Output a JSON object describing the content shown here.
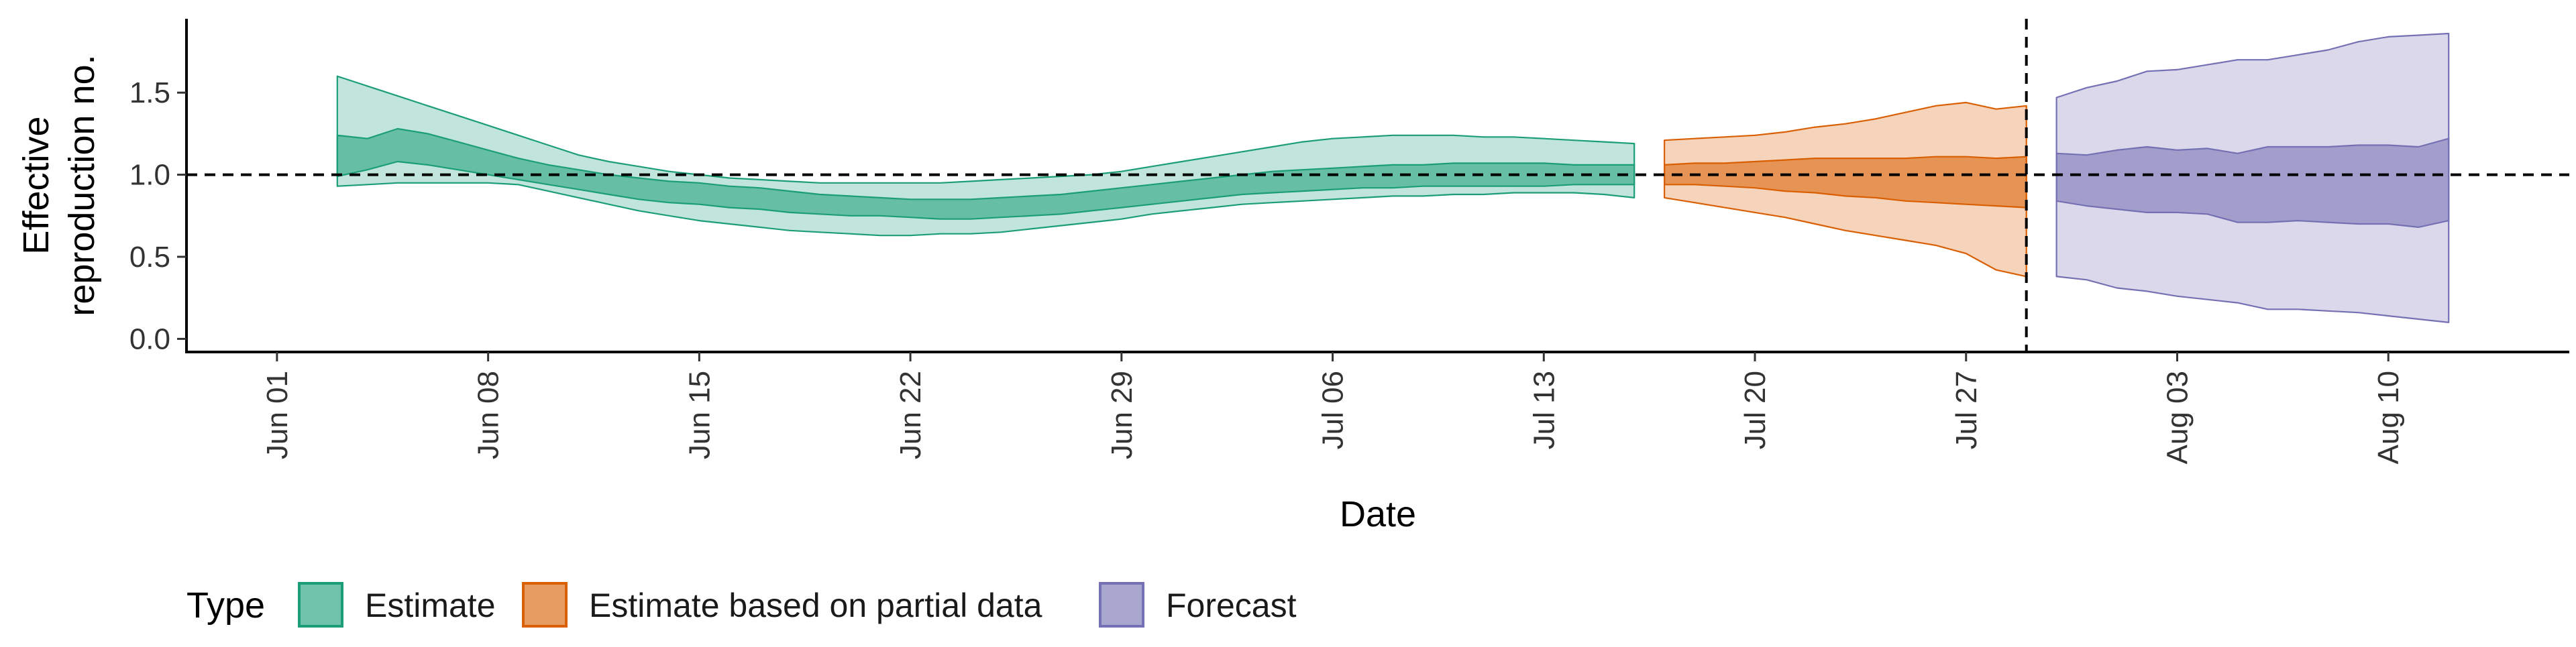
{
  "colors": {
    "estimate": "#1B9E77",
    "partial": "#D95F02",
    "forecast": "#7570B3",
    "axis": "#000000"
  },
  "chart_data": {
    "type": "area",
    "xlabel": "Date",
    "ylabel_lines": [
      "Effective",
      "reproduction no."
    ],
    "ylim": [
      -0.08,
      1.95
    ],
    "xlim": [
      "2020-05-29",
      "2020-08-16"
    ],
    "y_ticks": [
      0.0,
      0.5,
      1.0,
      1.5
    ],
    "y_tick_labels": [
      "0.0",
      "0.5",
      "1.0",
      "1.5"
    ],
    "x_ticks": [
      "2020-06-01",
      "2020-06-08",
      "2020-06-15",
      "2020-06-22",
      "2020-06-29",
      "2020-07-06",
      "2020-07-13",
      "2020-07-20",
      "2020-07-27",
      "2020-08-03",
      "2020-08-10"
    ],
    "x_tick_labels": [
      "Jun 01",
      "Jun 08",
      "Jun 15",
      "Jun 22",
      "Jun 29",
      "Jul 06",
      "Jul 13",
      "Jul 20",
      "Jul 27",
      "Aug 03",
      "Aug 10"
    ],
    "reference_line_y": 1.0,
    "forecast_start_line_x": "2020-07-29",
    "legend": {
      "title": "Type",
      "position": "bottom",
      "labels": [
        "Estimate",
        "Estimate based on partial data",
        "Forecast"
      ]
    },
    "series": [
      {
        "name": "Estimate",
        "color_key": "estimate",
        "x": [
          "2020-06-03",
          "2020-06-04",
          "2020-06-05",
          "2020-06-06",
          "2020-06-07",
          "2020-06-08",
          "2020-06-09",
          "2020-06-10",
          "2020-06-11",
          "2020-06-12",
          "2020-06-13",
          "2020-06-14",
          "2020-06-15",
          "2020-06-16",
          "2020-06-17",
          "2020-06-18",
          "2020-06-19",
          "2020-06-20",
          "2020-06-21",
          "2020-06-22",
          "2020-06-23",
          "2020-06-24",
          "2020-06-25",
          "2020-06-26",
          "2020-06-27",
          "2020-06-28",
          "2020-06-29",
          "2020-06-30",
          "2020-07-01",
          "2020-07-02",
          "2020-07-03",
          "2020-07-04",
          "2020-07-05",
          "2020-07-06",
          "2020-07-07",
          "2020-07-08",
          "2020-07-09",
          "2020-07-10",
          "2020-07-11",
          "2020-07-12",
          "2020-07-13",
          "2020-07-14",
          "2020-07-15",
          "2020-07-16"
        ],
        "lower_90": [
          0.93,
          0.94,
          0.95,
          0.95,
          0.95,
          0.95,
          0.94,
          0.9,
          0.86,
          0.82,
          0.78,
          0.75,
          0.72,
          0.7,
          0.68,
          0.66,
          0.65,
          0.64,
          0.63,
          0.63,
          0.64,
          0.64,
          0.65,
          0.67,
          0.69,
          0.71,
          0.73,
          0.76,
          0.78,
          0.8,
          0.82,
          0.83,
          0.84,
          0.85,
          0.86,
          0.87,
          0.87,
          0.88,
          0.88,
          0.89,
          0.89,
          0.89,
          0.88,
          0.86
        ],
        "upper_90": [
          1.6,
          1.54,
          1.48,
          1.42,
          1.36,
          1.3,
          1.24,
          1.18,
          1.12,
          1.08,
          1.05,
          1.02,
          1.0,
          0.98,
          0.97,
          0.96,
          0.95,
          0.95,
          0.95,
          0.95,
          0.95,
          0.96,
          0.97,
          0.98,
          0.99,
          1.0,
          1.02,
          1.05,
          1.08,
          1.11,
          1.14,
          1.17,
          1.2,
          1.22,
          1.23,
          1.24,
          1.24,
          1.24,
          1.23,
          1.23,
          1.22,
          1.21,
          1.2,
          1.19
        ],
        "lower_50": [
          0.99,
          1.03,
          1.08,
          1.06,
          1.03,
          1.0,
          0.97,
          0.94,
          0.91,
          0.88,
          0.85,
          0.83,
          0.82,
          0.8,
          0.79,
          0.77,
          0.76,
          0.75,
          0.75,
          0.74,
          0.73,
          0.73,
          0.74,
          0.75,
          0.76,
          0.78,
          0.8,
          0.82,
          0.84,
          0.86,
          0.88,
          0.89,
          0.9,
          0.91,
          0.92,
          0.92,
          0.93,
          0.93,
          0.93,
          0.93,
          0.93,
          0.94,
          0.94,
          0.94
        ],
        "upper_50": [
          1.24,
          1.22,
          1.28,
          1.25,
          1.2,
          1.15,
          1.1,
          1.06,
          1.03,
          1.0,
          0.98,
          0.96,
          0.95,
          0.93,
          0.92,
          0.9,
          0.88,
          0.87,
          0.86,
          0.85,
          0.85,
          0.85,
          0.86,
          0.87,
          0.88,
          0.9,
          0.92,
          0.94,
          0.96,
          0.98,
          1.0,
          1.02,
          1.03,
          1.04,
          1.05,
          1.06,
          1.06,
          1.07,
          1.07,
          1.07,
          1.07,
          1.06,
          1.06,
          1.06
        ]
      },
      {
        "name": "Estimate based on partial data",
        "color_key": "partial",
        "x": [
          "2020-07-17",
          "2020-07-18",
          "2020-07-19",
          "2020-07-20",
          "2020-07-21",
          "2020-07-22",
          "2020-07-23",
          "2020-07-24",
          "2020-07-25",
          "2020-07-26",
          "2020-07-27",
          "2020-07-28",
          "2020-07-29"
        ],
        "lower_90": [
          0.86,
          0.83,
          0.8,
          0.77,
          0.74,
          0.7,
          0.66,
          0.63,
          0.6,
          0.57,
          0.52,
          0.42,
          0.38
        ],
        "upper_90": [
          1.21,
          1.22,
          1.23,
          1.24,
          1.26,
          1.29,
          1.31,
          1.34,
          1.38,
          1.42,
          1.44,
          1.4,
          1.42
        ],
        "lower_50": [
          0.94,
          0.94,
          0.93,
          0.92,
          0.9,
          0.89,
          0.87,
          0.86,
          0.84,
          0.83,
          0.82,
          0.81,
          0.8
        ],
        "upper_50": [
          1.06,
          1.07,
          1.07,
          1.08,
          1.09,
          1.1,
          1.1,
          1.1,
          1.1,
          1.11,
          1.11,
          1.1,
          1.11
        ]
      },
      {
        "name": "Forecast",
        "color_key": "forecast",
        "x": [
          "2020-07-30",
          "2020-07-31",
          "2020-08-01",
          "2020-08-02",
          "2020-08-03",
          "2020-08-04",
          "2020-08-05",
          "2020-08-06",
          "2020-08-07",
          "2020-08-08",
          "2020-08-09",
          "2020-08-10",
          "2020-08-11",
          "2020-08-12"
        ],
        "lower_90": [
          0.38,
          0.36,
          0.31,
          0.29,
          0.26,
          0.24,
          0.22,
          0.18,
          0.18,
          0.17,
          0.16,
          0.14,
          0.12,
          0.1
        ],
        "upper_90": [
          1.47,
          1.53,
          1.57,
          1.63,
          1.64,
          1.67,
          1.7,
          1.7,
          1.73,
          1.76,
          1.81,
          1.84,
          1.85,
          1.86
        ],
        "lower_50": [
          0.84,
          0.81,
          0.79,
          0.77,
          0.77,
          0.76,
          0.71,
          0.71,
          0.72,
          0.71,
          0.7,
          0.7,
          0.68,
          0.72
        ],
        "upper_50": [
          1.13,
          1.12,
          1.15,
          1.17,
          1.15,
          1.16,
          1.13,
          1.17,
          1.17,
          1.17,
          1.18,
          1.18,
          1.17,
          1.22
        ]
      }
    ]
  }
}
